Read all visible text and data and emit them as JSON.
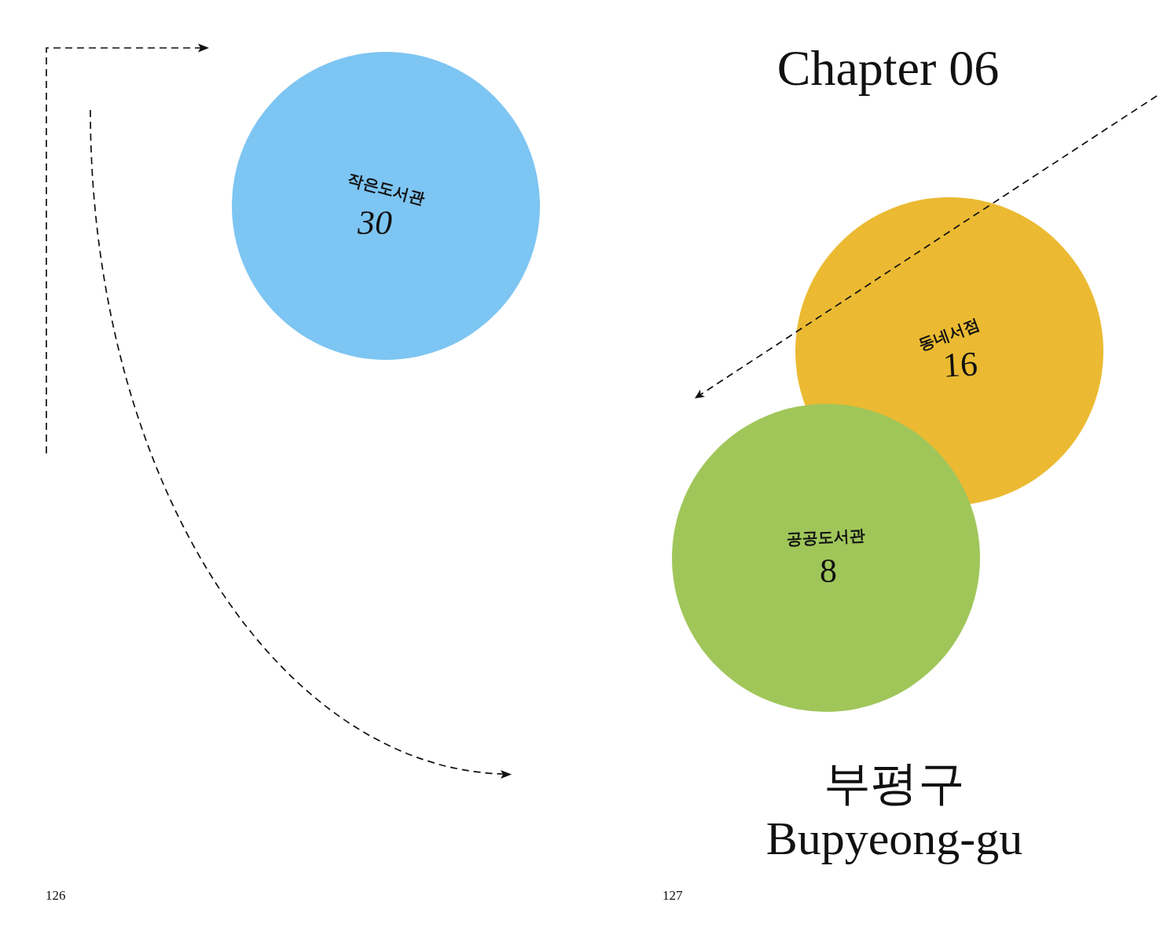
{
  "chart_data": {
    "type": "other",
    "title": "Chapter 06",
    "subtitle": "부평구\nBupyeong-gu",
    "categories": [
      "작은도서관",
      "동네서점",
      "공공도서관"
    ],
    "values": [
      30,
      16,
      8
    ],
    "colors": [
      "#7dc5f2",
      "#ebba32",
      "#a0c65a"
    ],
    "data_labels": true,
    "annotations": [
      "126",
      "127"
    ]
  }
}
